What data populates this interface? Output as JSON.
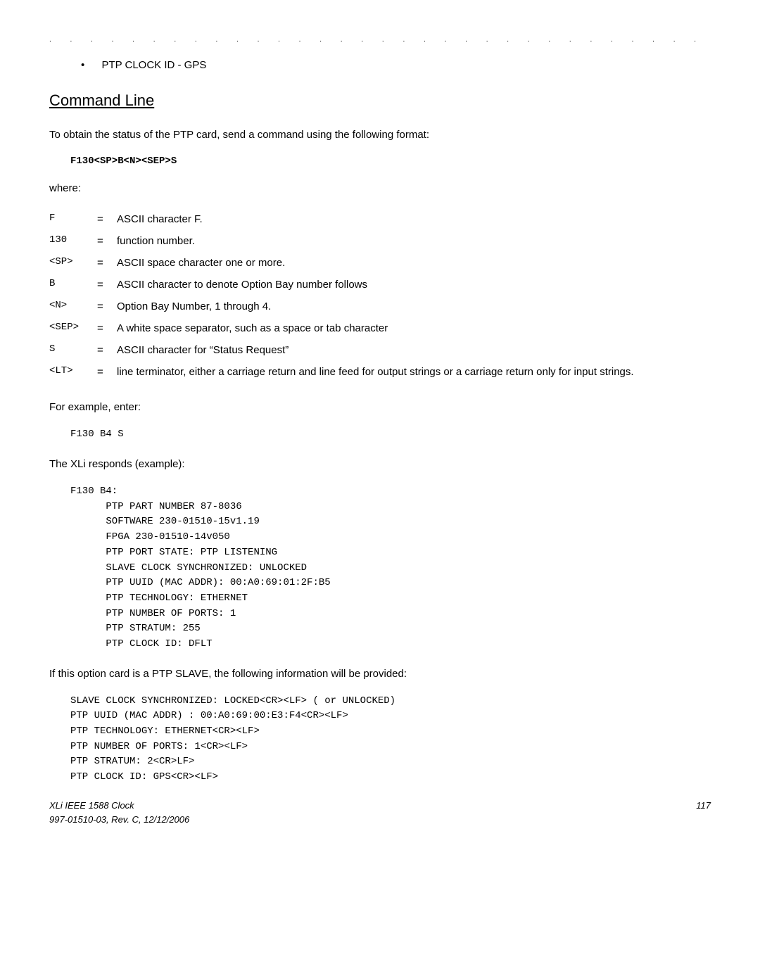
{
  "bullet": "PTP CLOCK ID - GPS",
  "section_heading": "Command Line",
  "intro": "To obtain the status of the PTP card, send a command using the following format:",
  "command": "F130<SP>B<N><SEP>S",
  "where_label": "where:",
  "defs": [
    {
      "sym": "F",
      "desc": "ASCII character F."
    },
    {
      "sym": "130",
      "desc": "function number."
    },
    {
      "sym": "<SP>",
      "desc": "ASCII space character one or more."
    },
    {
      "sym": "B",
      "desc": "ASCII character to denote Option Bay number follows"
    },
    {
      "sym": "<N>",
      "desc": "Option Bay Number, 1 through 4."
    },
    {
      "sym": "<SEP>",
      "desc": "A white space separator, such as a space or tab character"
    },
    {
      "sym": "S",
      "desc": "ASCII character for “Status Request”"
    },
    {
      "sym": "<LT>",
      "desc": "line terminator, either a carriage return and line feed for output strings or a carriage return only for input strings."
    }
  ],
  "example_label": "For example, enter:",
  "example_code": "F130 B4 S",
  "response_label": "The XLi responds (example):",
  "response_block": "F130 B4:\n      PTP PART NUMBER 87-8036\n      SOFTWARE 230-01510-15v1.19\n      FPGA 230-01510-14v050\n      PTP PORT STATE: PTP LISTENING\n      SLAVE CLOCK SYNCHRONIZED: UNLOCKED\n      PTP UUID (MAC ADDR): 00:A0:69:01:2F:B5\n      PTP TECHNOLOGY: ETHERNET\n      PTP NUMBER OF PORTS: 1\n      PTP STRATUM: 255\n      PTP CLOCK ID: DFLT",
  "slave_label": "If this option card is a PTP SLAVE, the following information will be provided:",
  "slave_block": "SLAVE CLOCK SYNCHRONIZED: LOCKED<CR><LF> ( or UNLOCKED)\nPTP UUID (MAC ADDR) : 00:A0:69:00:E3:F4<CR><LF>\nPTP TECHNOLOGY: ETHERNET<CR><LF>\nPTP NUMBER OF PORTS: 1<CR><LF>\nPTP STRATUM: 2<CR>LF>\nPTP CLOCK ID: GPS<CR><LF>",
  "footer_title": "XLi IEEE 1588 Clock",
  "footer_page": "117",
  "footer_rev": "997-01510-03, Rev. C, 12/12/2006",
  "colors": {
    "text": "#000000",
    "background": "#ffffff"
  }
}
